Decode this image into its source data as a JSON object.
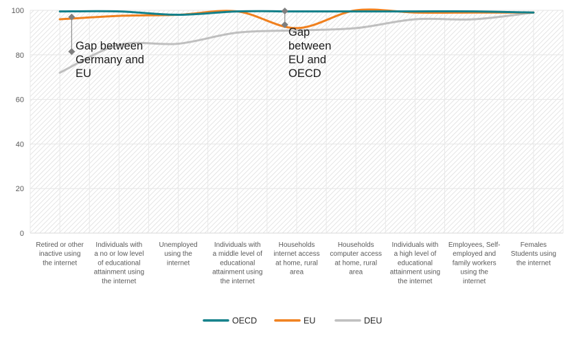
{
  "chart_data": {
    "type": "line",
    "title": "",
    "xlabel": "",
    "ylabel": "",
    "ylim": [
      0,
      100
    ],
    "yticks": [
      0,
      20,
      40,
      60,
      80,
      100
    ],
    "grid": true,
    "smoothed": true,
    "legend_position": "bottom",
    "categories": [
      [
        "Retired or other",
        "inactive using",
        "the internet"
      ],
      [
        "Individuals with",
        "a no or low level",
        "of educational",
        "attainment using",
        "the internet"
      ],
      [
        "Unemployed",
        "using the",
        "internet"
      ],
      [
        "Individuals with",
        "a middle level of",
        "educational",
        "attainment using",
        "the internet"
      ],
      [
        "Households",
        "internet access",
        "at home, rural",
        "area"
      ],
      [
        "Households",
        "computer access",
        "at home, rural",
        "area"
      ],
      [
        "Individuals with",
        "a high level of",
        "educational",
        "attainment using",
        "the internet"
      ],
      [
        "Employees, Self-",
        "employed and",
        "family workers",
        "using the",
        "internet"
      ],
      [
        "Females",
        "Students using",
        "the internet"
      ]
    ],
    "series": [
      {
        "name": "OECD",
        "color": "#13808a",
        "values": [
          99.5,
          99.5,
          98,
          99.5,
          99.5,
          99.5,
          99.5,
          99.5,
          99
        ]
      },
      {
        "name": "EU",
        "color": "#f0801e",
        "values": [
          96,
          97.5,
          98,
          99.5,
          92,
          100,
          99,
          99,
          99
        ]
      },
      {
        "name": "DEU",
        "color": "#bfbfbf",
        "values": [
          72,
          84.5,
          85,
          90,
          91,
          92,
          96,
          96,
          99
        ]
      }
    ],
    "annotations": [
      {
        "label": "Gap between Germany and EU",
        "lines": [
          "Gap between",
          "Germany and",
          "EU"
        ],
        "x_category": 0.2,
        "from": 97,
        "to": 81.5
      },
      {
        "label": "Gap between EU and OECD",
        "lines": [
          "Gap",
          "between",
          "EU and",
          "OECD"
        ],
        "x_category": 3.8,
        "from": 99.7,
        "to": 93.5
      }
    ]
  }
}
